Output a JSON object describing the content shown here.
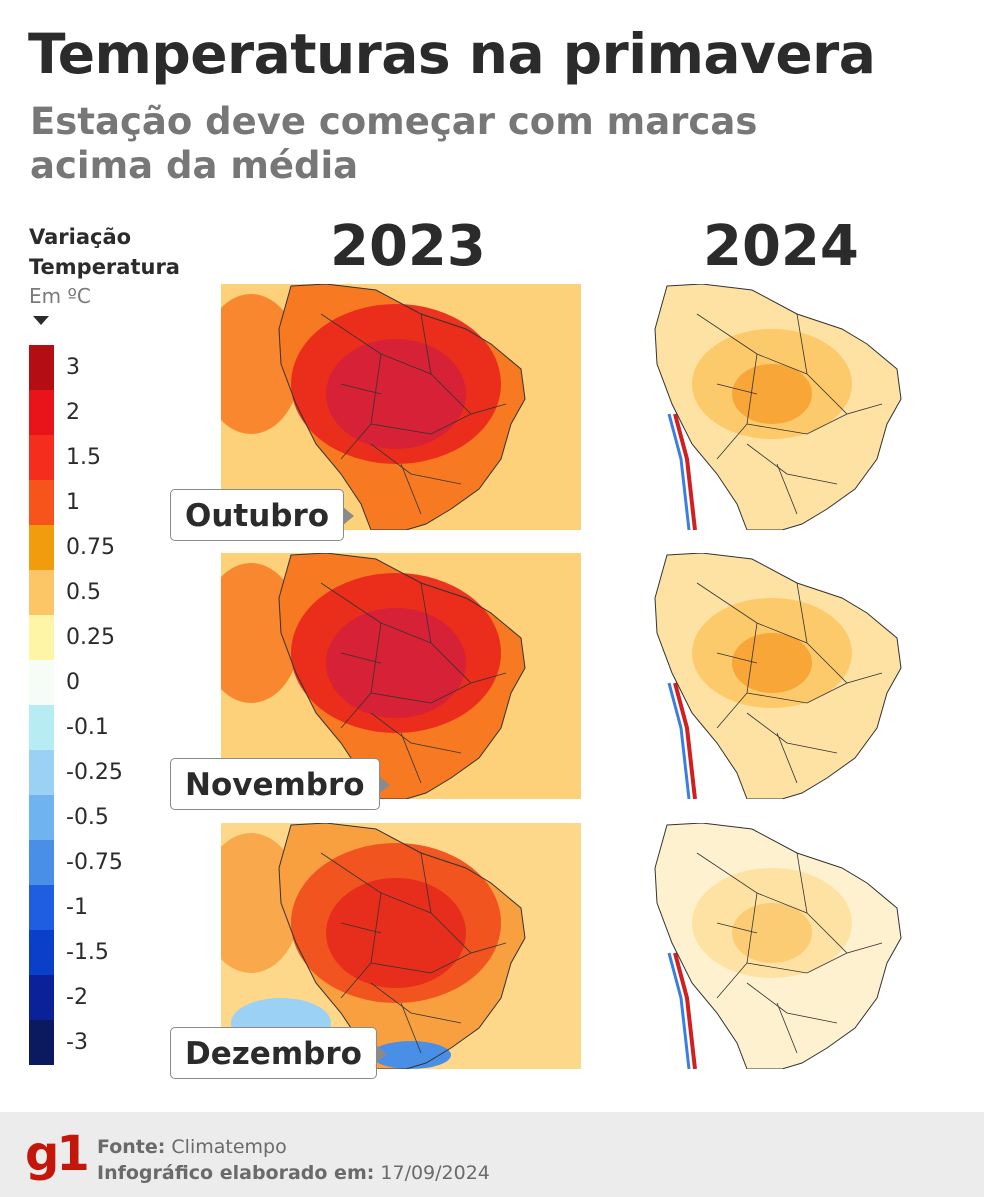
{
  "title": "Temperaturas na primavera",
  "subtitle": "Estação deve começar com marcas acima da média",
  "legend": {
    "title_line1": "Variação",
    "title_line2": "Temperatura",
    "unit": "Em ºC",
    "labels": [
      "3",
      "2",
      "1.5",
      "1",
      "0.75",
      "0.5",
      "0.25",
      "0",
      "-0.1",
      "-0.25",
      "-0.5",
      "-0.75",
      "-1",
      "-1.5",
      "-2",
      "-3"
    ],
    "colors": [
      "#b50d14",
      "#e8141a",
      "#f52d1d",
      "#f6541a",
      "#f19c0c",
      "#fcc667",
      "#fff5a6",
      "#f6fcf6",
      "#b7ecf3",
      "#9ad1f5",
      "#6fb4f0",
      "#4a8fe6",
      "#1f5ee0",
      "#0a3fc9",
      "#0a219a",
      "#0b1a5e"
    ]
  },
  "years": [
    "2023",
    "2024"
  ],
  "months": [
    "Outubro",
    "Novembro",
    "Dezembro"
  ],
  "maps": [
    {
      "year": "2023",
      "month": "Outubro",
      "intensity": "very-high"
    },
    {
      "year": "2024",
      "month": "Outubro",
      "intensity": "low"
    },
    {
      "year": "2023",
      "month": "Novembro",
      "intensity": "very-high"
    },
    {
      "year": "2024",
      "month": "Novembro",
      "intensity": "low"
    },
    {
      "year": "2023",
      "month": "Dezembro",
      "intensity": "high"
    },
    {
      "year": "2024",
      "month": "Dezembro",
      "intensity": "very-low"
    }
  ],
  "footer": {
    "logo": "g1",
    "source_label": "Fonte:",
    "source_value": "Climatempo",
    "date_label": "Infográfico elaborado em:",
    "date_value": "17/09/2024"
  }
}
